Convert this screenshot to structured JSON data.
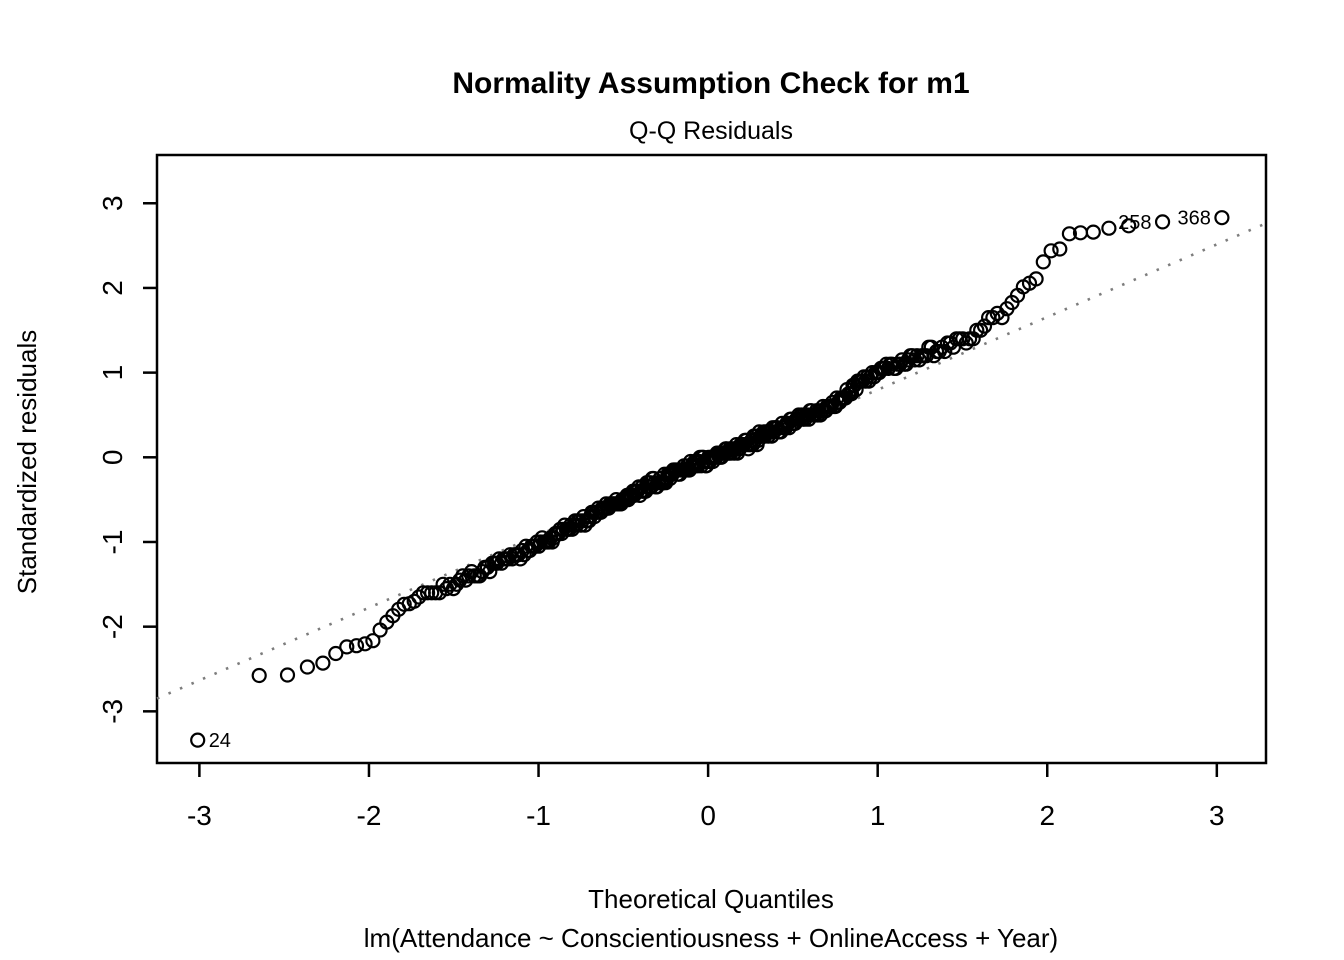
{
  "chart_data": {
    "type": "scatter",
    "subtype": "qq-plot",
    "title": "Normality Assumption Check for m1",
    "subtitle": "Q-Q Residuals",
    "xlabel": "Theoretical Quantiles",
    "xlabel_sub": "lm(Attendance ~ Conscientiousness + OnlineAccess + Year)",
    "ylabel": "Standardized residuals",
    "xlim": [
      -3.25,
      3.29
    ],
    "ylim": [
      -3.61,
      3.57
    ],
    "x_ticks": [
      -3,
      -2,
      -1,
      0,
      1,
      2,
      3
    ],
    "y_ticks": [
      -3,
      -2,
      -1,
      0,
      1,
      2,
      3
    ],
    "grid": false,
    "legend": null,
    "n_points": 400,
    "point_style": {
      "shape": "open-circle",
      "color": "#000000"
    },
    "reference_line": {
      "style": "dotted",
      "intercept": -0.06,
      "slope": 0.858,
      "color": "#7d7d7d"
    },
    "labeled_points": [
      {
        "label": "24",
        "x": -3.01,
        "y": -3.34,
        "side": "right"
      },
      {
        "label": "258",
        "x": 2.68,
        "y": 2.78,
        "side": "left"
      },
      {
        "label": "368",
        "x": 3.03,
        "y": 2.83,
        "side": "left"
      }
    ],
    "qq_curve": [
      [
        -3.01,
        -3.34
      ],
      [
        -2.66,
        -2.59
      ],
      [
        -2.48,
        -2.58
      ],
      [
        -2.36,
        -2.49
      ],
      [
        -2.27,
        -2.43
      ],
      [
        -2.19,
        -2.31
      ],
      [
        -2.12,
        -2.22
      ],
      [
        -2.05,
        -2.21
      ],
      [
        -1.99,
        -2.17
      ],
      [
        -1.95,
        -2.1
      ],
      [
        -1.91,
        -1.97
      ],
      [
        -1.86,
        -1.87
      ],
      [
        -1.8,
        -1.76
      ],
      [
        -1.73,
        -1.7
      ],
      [
        -1.65,
        -1.61
      ],
      [
        -1.57,
        -1.54
      ],
      [
        -1.49,
        -1.48
      ],
      [
        -1.41,
        -1.4
      ],
      [
        -1.32,
        -1.32
      ],
      [
        -1.21,
        -1.22
      ],
      [
        -1.09,
        -1.12
      ],
      [
        -0.97,
        -1.0
      ],
      [
        -0.86,
        -0.88
      ],
      [
        -0.7,
        -0.7
      ],
      [
        -0.56,
        -0.55
      ],
      [
        -0.42,
        -0.41
      ],
      [
        -0.28,
        -0.27
      ],
      [
        -0.14,
        -0.14
      ],
      [
        0.0,
        -0.03
      ],
      [
        0.14,
        0.08
      ],
      [
        0.28,
        0.21
      ],
      [
        0.42,
        0.34
      ],
      [
        0.56,
        0.46
      ],
      [
        0.7,
        0.58
      ],
      [
        0.8,
        0.7
      ],
      [
        0.9,
        0.9
      ],
      [
        1.0,
        1.0
      ],
      [
        1.13,
        1.12
      ],
      [
        1.25,
        1.2
      ],
      [
        1.37,
        1.27
      ],
      [
        1.46,
        1.34
      ],
      [
        1.55,
        1.42
      ],
      [
        1.66,
        1.59
      ],
      [
        1.78,
        1.78
      ],
      [
        1.84,
        1.98
      ],
      [
        1.92,
        2.1
      ],
      [
        1.96,
        2.16
      ],
      [
        1.99,
        2.44
      ],
      [
        2.04,
        2.45
      ],
      [
        2.09,
        2.49
      ],
      [
        2.14,
        2.65
      ],
      [
        2.2,
        2.66
      ],
      [
        2.26,
        2.66
      ],
      [
        2.32,
        2.69
      ],
      [
        2.4,
        2.72
      ],
      [
        2.68,
        2.78
      ],
      [
        3.03,
        2.83
      ]
    ]
  }
}
